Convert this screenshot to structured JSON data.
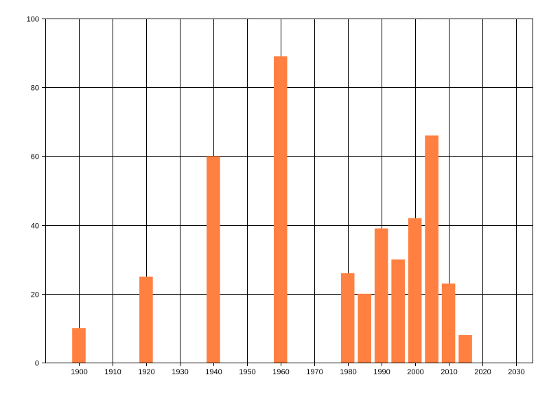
{
  "chart_data": {
    "type": "bar",
    "x": [
      1900,
      1920,
      1940,
      1960,
      1980,
      1985,
      1990,
      1995,
      2000,
      2005,
      2010,
      2015
    ],
    "values": [
      10,
      25,
      60,
      89,
      26,
      20,
      39,
      30,
      42,
      66,
      23,
      8
    ],
    "xlim": [
      1890,
      2035
    ],
    "ylim": [
      0,
      100
    ],
    "x_ticks": [
      1900,
      1910,
      1920,
      1930,
      1940,
      1950,
      1960,
      1970,
      1980,
      1990,
      2000,
      2010,
      2020,
      2030
    ],
    "y_ticks": [
      0,
      20,
      40,
      60,
      80,
      100
    ],
    "grid": true,
    "legend": "none",
    "title": "",
    "xlabel": "",
    "ylabel": "",
    "bar_color": "#ff8040",
    "grid_color": "#000000"
  }
}
